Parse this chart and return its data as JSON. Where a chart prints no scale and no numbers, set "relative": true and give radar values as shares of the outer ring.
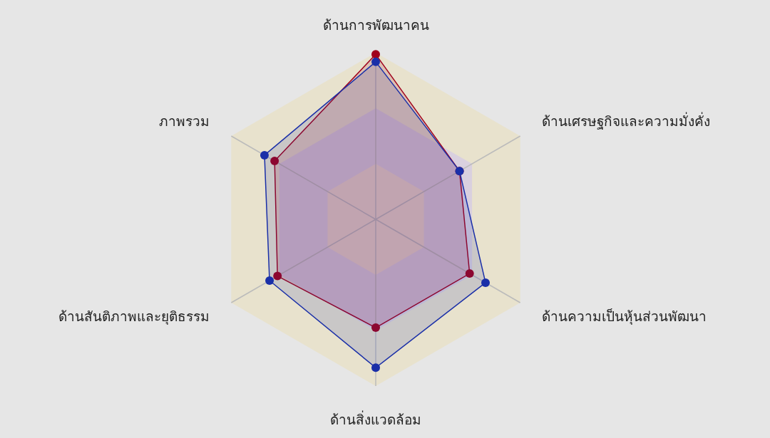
{
  "chart_data": {
    "type": "radar",
    "relative": true,
    "grid": true,
    "marker": "circle",
    "categories": [
      "ด้านการพัฒนาคน",
      "ด้านเศรษฐกิจและความมั่งคั่ง",
      "ด้านความเป็นหุ้นส่วนพัฒนา",
      "ด้านสิ่งแวดล้อม",
      "ด้านสันติภาพและยุติธรรม",
      "ภาพรวม"
    ],
    "series": [
      {
        "color": "#a0001c",
        "values": [
          0.99,
          0.58,
          0.65,
          0.65,
          0.68,
          0.7
        ]
      },
      {
        "color": "#1a2fa8",
        "values": [
          0.945,
          0.58,
          0.76,
          0.89,
          0.735,
          0.77
        ]
      }
    ]
  }
}
